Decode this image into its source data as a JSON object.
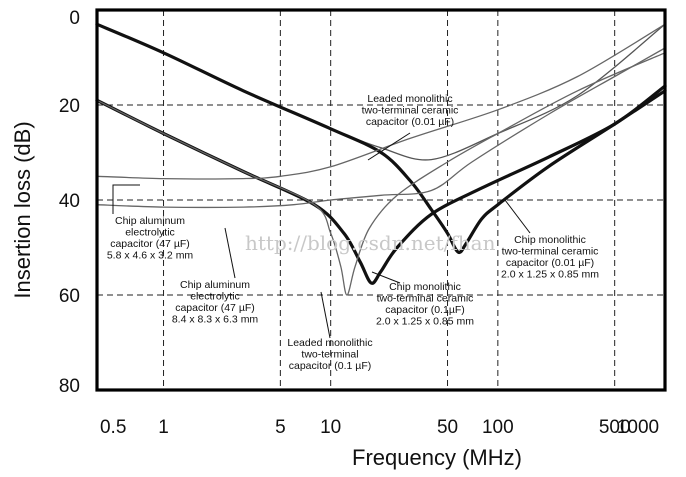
{
  "chart_data": {
    "type": "line",
    "title": "",
    "xlabel": "Frequency (MHz)",
    "ylabel": "Insertion loss (dB)",
    "x_scale": "log",
    "xlim": [
      0.4,
      1000
    ],
    "ylim": [
      0,
      80
    ],
    "y_inverted": true,
    "grid": "dashed",
    "x_ticks": [
      {
        "value": 0.5,
        "label": "0.5"
      },
      {
        "value": 1,
        "label": "1"
      },
      {
        "value": 5,
        "label": "5"
      },
      {
        "value": 10,
        "label": "10"
      },
      {
        "value": 50,
        "label": "50"
      },
      {
        "value": 100,
        "label": "100"
      },
      {
        "value": 500,
        "label": "500"
      },
      {
        "value": 1000,
        "label": "1000"
      }
    ],
    "x_gridlines": [
      1,
      5,
      10,
      50,
      100,
      500
    ],
    "y_ticks": [
      {
        "value": 0,
        "label": "0"
      },
      {
        "value": 20,
        "label": "20"
      },
      {
        "value": 40,
        "label": "40"
      },
      {
        "value": 60,
        "label": "60"
      },
      {
        "value": 80,
        "label": "80"
      }
    ],
    "y_gridlines": [
      20,
      40,
      60
    ],
    "series": [
      {
        "key": "leaded-001",
        "color": "#555555",
        "width": 1.3,
        "points": [
          [
            0.4,
            3
          ],
          [
            1,
            9
          ],
          [
            3,
            17
          ],
          [
            10,
            25
          ],
          [
            20,
            29
          ],
          [
            40,
            31.5
          ],
          [
            100,
            26
          ],
          [
            300,
            18
          ],
          [
            1000,
            3
          ]
        ]
      },
      {
        "key": "mono-001",
        "color": "#111111",
        "width": 3.2,
        "points": [
          [
            0.4,
            3
          ],
          [
            1,
            9
          ],
          [
            3,
            17
          ],
          [
            10,
            25
          ],
          [
            20,
            30
          ],
          [
            30,
            36
          ],
          [
            40,
            42
          ],
          [
            50,
            47
          ],
          [
            58,
            51
          ],
          [
            65,
            49
          ],
          [
            80,
            44
          ],
          [
            100,
            41
          ],
          [
            200,
            33
          ],
          [
            500,
            24
          ],
          [
            1000,
            17
          ]
        ]
      },
      {
        "key": "mono-01",
        "color": "#111111",
        "width": 3.2,
        "points": [
          [
            0.4,
            19
          ],
          [
            1,
            26
          ],
          [
            3,
            34
          ],
          [
            8,
            41
          ],
          [
            12,
            47
          ],
          [
            15,
            53
          ],
          [
            17.5,
            57.5
          ],
          [
            20,
            55
          ],
          [
            25,
            50
          ],
          [
            40,
            43
          ],
          [
            80,
            37.5
          ],
          [
            200,
            31
          ],
          [
            500,
            24
          ],
          [
            1000,
            16
          ]
        ]
      },
      {
        "key": "leaded-01",
        "color": "#666666",
        "width": 1.3,
        "points": [
          [
            0.4,
            19
          ],
          [
            1,
            26
          ],
          [
            3,
            34
          ],
          [
            8,
            41
          ],
          [
            10,
            47
          ],
          [
            11.5,
            54
          ],
          [
            12.5,
            60
          ],
          [
            14,
            54
          ],
          [
            17,
            46
          ],
          [
            25,
            39
          ],
          [
            50,
            32
          ],
          [
            100,
            26
          ],
          [
            300,
            17
          ],
          [
            1000,
            9
          ]
        ]
      },
      {
        "key": "alu-58",
        "color": "#666666",
        "width": 1.3,
        "points": [
          [
            0.4,
            35
          ],
          [
            1,
            35.5
          ],
          [
            3,
            35.5
          ],
          [
            5,
            35
          ],
          [
            10,
            33
          ],
          [
            30,
            27
          ],
          [
            100,
            21
          ],
          [
            300,
            14
          ],
          [
            1000,
            3
          ]
        ]
      },
      {
        "key": "alu-84",
        "color": "#666666",
        "width": 1.3,
        "points": [
          [
            0.4,
            41
          ],
          [
            1,
            41.5
          ],
          [
            3,
            41.5
          ],
          [
            6,
            41
          ],
          [
            10,
            40
          ],
          [
            20,
            39
          ],
          [
            40,
            38
          ],
          [
            70,
            32
          ],
          [
            200,
            22
          ],
          [
            500,
            14
          ],
          [
            1000,
            8
          ]
        ]
      }
    ],
    "annotations": [
      {
        "key": "leaded-001",
        "lines": [
          "Leaded monolithic",
          "two-terminal ceramic",
          "capacitor (0.01 µF)"
        ]
      },
      {
        "key": "alu-58",
        "lines": [
          "Chip aluminum",
          "electrolytic",
          "capacitor (47 µF)",
          "5.8 x 4.6 x 3.2 mm"
        ]
      },
      {
        "key": "alu-84",
        "lines": [
          "Chip aluminum",
          "electrolytic",
          "capacitor (47 µF)",
          "8.4 x 8.3 x 6.3 mm"
        ]
      },
      {
        "key": "leaded-01",
        "lines": [
          "Leaded monolithic",
          "two-terminal",
          "capacitor (0.1 µF)"
        ]
      },
      {
        "key": "mono-01",
        "lines": [
          "Chip monolithic",
          "two-terminal ceramic",
          "capacitor (0.1µF)",
          "2.0 x 1.25 x 0.85 mm"
        ]
      },
      {
        "key": "mono-001",
        "lines": [
          "Chip monolithic",
          "two-terminal ceramic",
          "capacitor (0.01 µF)",
          "2.0 x 1.25 x 0.85 mm"
        ]
      }
    ],
    "watermark": "http://blog.csdn.net/fhan"
  }
}
